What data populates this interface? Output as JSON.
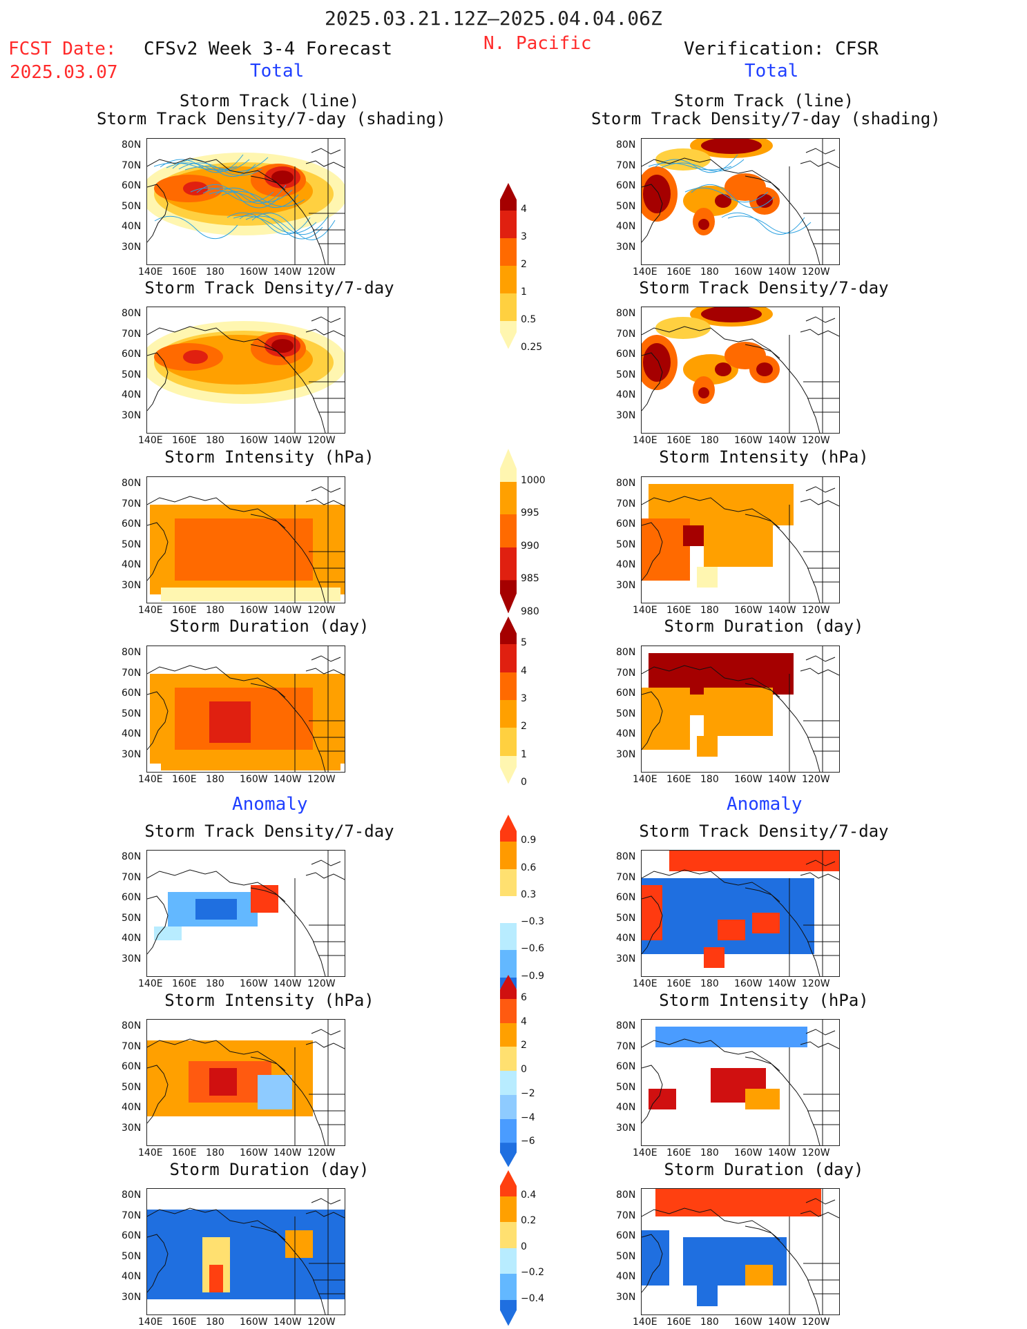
{
  "header": {
    "date_range": "2025.03.21.12Z–2025.04.04.06Z",
    "fcst_label": "FCST Date:",
    "fcst_date": "2025.03.07",
    "model": "CFSv2 Week 3-4 Forecast",
    "region": "N. Pacific",
    "verification": "Verification: CFSR",
    "total_left": "Total",
    "total_right": "Total",
    "anomaly_left": "Anomaly",
    "anomaly_right": "Anomaly"
  },
  "axes": {
    "lat_ticks": [
      "80N",
      "70N",
      "60N",
      "50N",
      "40N",
      "30N"
    ],
    "lon_ticks": [
      "140E",
      "160E",
      "180",
      "160W",
      "140W",
      "120W"
    ]
  },
  "panels": {
    "p1": {
      "line1": "Storm Track (line)",
      "line2": "Storm Track Density/7-day (shading)"
    },
    "p2": "Storm Track Density/7-day",
    "p3": "Storm Intensity (hPa)",
    "p4": "Storm Duration (day)",
    "p5": "Storm Track Density/7-day",
    "p6": "Storm Intensity (hPa)",
    "p7": "Storm Duration (day)"
  },
  "colorbars": {
    "density": {
      "labels": [
        "4",
        "3",
        "2",
        "1",
        "0.5",
        "0.25"
      ],
      "colors": [
        "#a50000",
        "#e02010",
        "#ff6a00",
        "#ffa000",
        "#ffd040",
        "#fff6b0"
      ]
    },
    "intensity": {
      "labels": [
        "1000",
        "995",
        "990",
        "985",
        "980"
      ],
      "colors": [
        "#fff6b0",
        "#ffa000",
        "#ff6a00",
        "#e02010",
        "#a50000"
      ]
    },
    "duration": {
      "labels": [
        "5",
        "4",
        "3",
        "2",
        "1",
        "0"
      ],
      "colors": [
        "#a50000",
        "#e02010",
        "#ff6a00",
        "#ffa000",
        "#ffd040",
        "#fff6b0"
      ]
    },
    "anom_density": {
      "labels": [
        "0.9",
        "0.6",
        "0.3",
        "−0.3",
        "−0.6",
        "−0.9"
      ],
      "colors": [
        "#ff3a10",
        "#ff9a00",
        "#ffe070",
        "#ffffff",
        "#b8ecff",
        "#63b8ff",
        "#1f6fe0"
      ]
    },
    "anom_intensity": {
      "labels": [
        "6",
        "4",
        "2",
        "0",
        "−2",
        "−4",
        "−6"
      ],
      "colors": [
        "#d01010",
        "#ff5a10",
        "#ffa000",
        "#ffe070",
        "#b8ecff",
        "#8ecbff",
        "#4a9cff",
        "#1f6fe0"
      ]
    },
    "anom_duration": {
      "labels": [
        "0.4",
        "0.2",
        "0",
        "−0.2",
        "−0.4"
      ],
      "colors": [
        "#ff4010",
        "#ffa000",
        "#ffe070",
        "#b8ecff",
        "#63b8ff",
        "#1f6fe0"
      ]
    }
  }
}
